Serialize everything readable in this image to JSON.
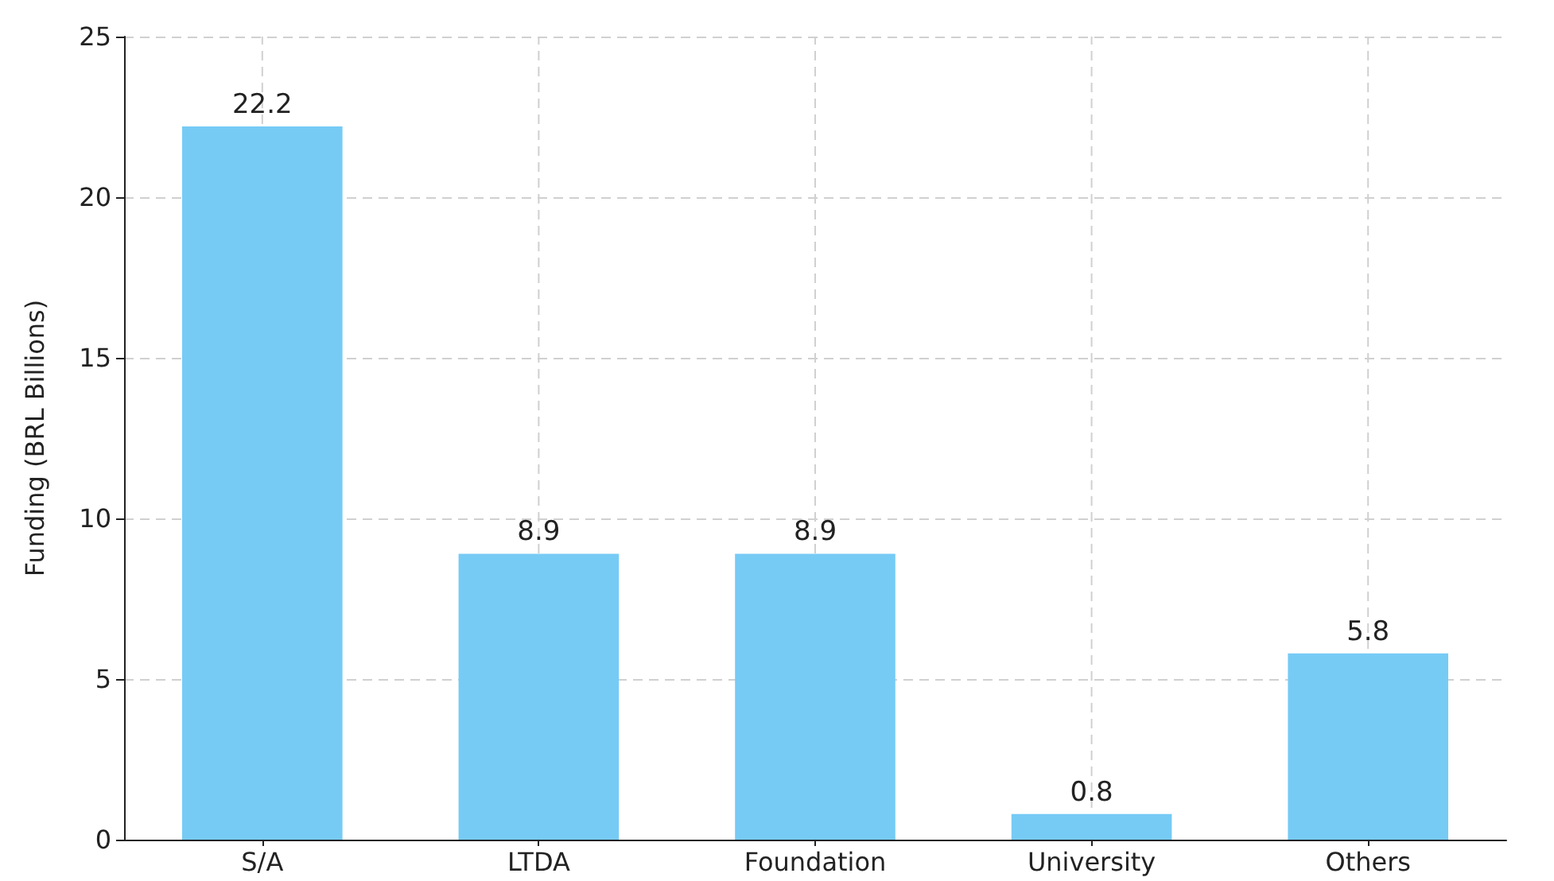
{
  "chart_data": {
    "type": "bar",
    "ylabel": "Funding (BRL Billions)",
    "categories": [
      "S/A",
      "LTDA",
      "Foundation",
      "University",
      "Others"
    ],
    "values": [
      22.2,
      8.9,
      8.9,
      0.8,
      5.8
    ],
    "color": "#76cbf5",
    "ylim": [
      0,
      25
    ],
    "yticks": [
      0,
      5,
      10,
      15,
      20,
      25
    ],
    "grid": true,
    "data_labels": true
  }
}
